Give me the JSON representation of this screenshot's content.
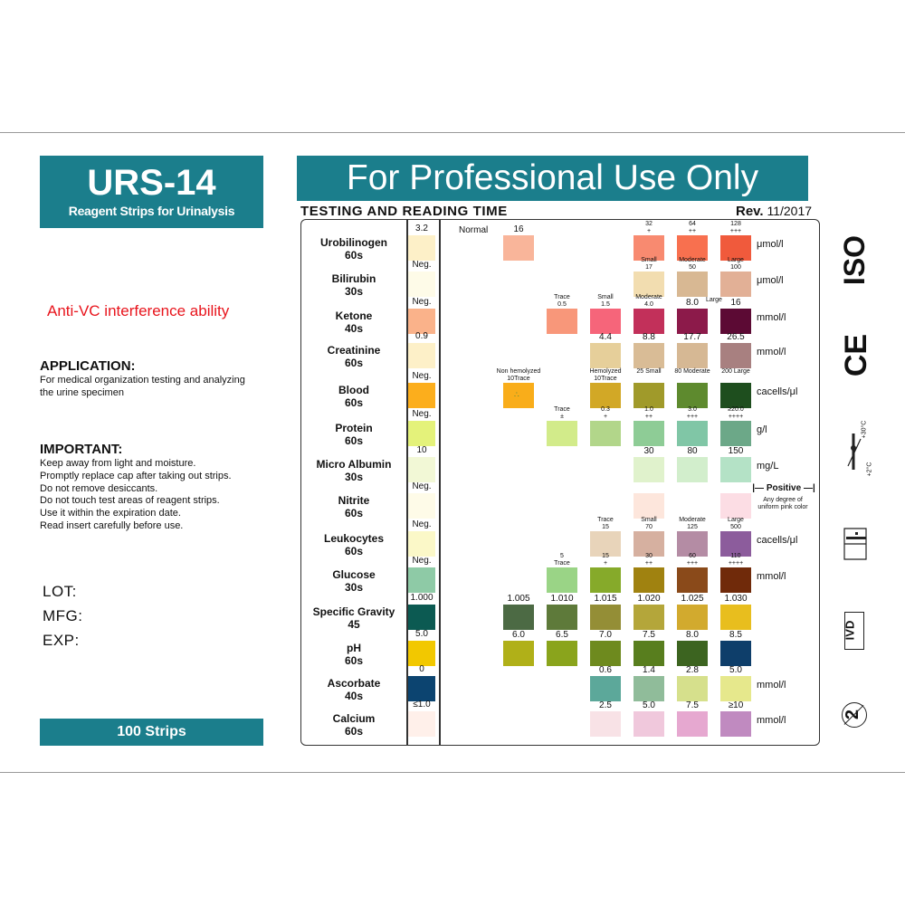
{
  "brand": {
    "title": "URS-14",
    "subtitle": "Reagent Strips for Urinalysis",
    "strips": "100 Strips",
    "color": "#1b7e8c"
  },
  "left": {
    "anti_vc": "Anti-VC interference ability",
    "application_heading": "APPLICATION:",
    "application_text": [
      "For medical organization testing and analyzing",
      "the urine specimen"
    ],
    "important_heading": "IMPORTANT:",
    "important_text": [
      "Keep away from light and moisture.",
      "Promptly replace cap after taking out strips.",
      "Do not remove desiccants.",
      "Do not touch test areas of reagent strips.",
      "Use it within the expiration date.",
      "Read insert carefully before use."
    ],
    "lot": "LOT:",
    "mfg": "MFG:",
    "exp": "EXP:"
  },
  "header": {
    "banner": "For Professional Use Only",
    "subtitle": "TESTING AND READING TIME",
    "rev_label": "Rev.",
    "rev_date": "11/2017"
  },
  "chart": {
    "normal_label": "Normal",
    "positive_label": "Positive",
    "nitrite_note": [
      "Any degree of",
      "uniform pink color"
    ],
    "large_label": "Large",
    "rows": [
      {
        "name": "Urobilinogen",
        "time": "60s",
        "neg": {
          "label": "3.2",
          "color": "#fdf0c8"
        },
        "unit": "μmol/l",
        "cells": [
          {
            "label": [
              "16"
            ],
            "color": "#f9b59a"
          },
          null,
          null,
          {
            "label": [
              "32",
              "+"
            ],
            "color": "#f88a70"
          },
          {
            "label": [
              "64",
              "++"
            ],
            "color": "#f8704f"
          },
          {
            "label": [
              "128",
              "+++"
            ],
            "color": "#f05a3c"
          }
        ]
      },
      {
        "name": "Bilirubin",
        "time": "30s",
        "neg": {
          "label": "Neg.",
          "color": "#fefbe8"
        },
        "unit": "μmol/l",
        "cells": [
          null,
          null,
          null,
          {
            "label": [
              "Small",
              "17"
            ],
            "color": "#f2ddb0"
          },
          {
            "label": [
              "Moderate",
              "50"
            ],
            "color": "#d8b893"
          },
          {
            "label": [
              "Large",
              "100"
            ],
            "color": "#e2b096"
          }
        ]
      },
      {
        "name": "Ketone",
        "time": "40s",
        "neg": {
          "label": "Neg.",
          "color": "#fab28a"
        },
        "unit": "mmol/l",
        "cells": [
          null,
          {
            "label": [
              "Trace",
              "0.5"
            ],
            "color": "#f8977a"
          },
          {
            "label": [
              "Small",
              "1.5"
            ],
            "color": "#f6657a"
          },
          {
            "label": [
              "Moderate",
              "4.0"
            ],
            "color": "#c2305a"
          },
          {
            "label": [
              "8.0"
            ],
            "color": "#8c1a4a"
          },
          {
            "label": [
              "16"
            ],
            "color": "#5c0a34"
          }
        ]
      },
      {
        "name": "Creatinine",
        "time": "60s",
        "neg": {
          "label": "0.9",
          "color": "#fdf0c8"
        },
        "unit": "mmol/l",
        "cells": [
          null,
          null,
          {
            "label": [
              "4.4"
            ],
            "color": "#e6cf9a"
          },
          {
            "label": [
              "8.8"
            ],
            "color": "#d9bc96"
          },
          {
            "label": [
              "17.7"
            ],
            "color": "#d6b894"
          },
          {
            "label": [
              "26.5"
            ],
            "color": "#a88080"
          }
        ]
      },
      {
        "name": "Blood",
        "time": "60s",
        "neg": {
          "label": "Neg.",
          "color": "#fcae1c"
        },
        "unit": "cacells/μl",
        "cells": [
          {
            "label": [
              "Non hemolyzed",
              "10Trace"
            ],
            "color": "#f9ad1a"
          },
          null,
          {
            "label": [
              "Hemolyzed",
              "10Trace"
            ],
            "color": "#d2a826"
          },
          {
            "label": [
              "25 Small"
            ],
            "color": "#a09a2a"
          },
          {
            "label": [
              "80 Moderate"
            ],
            "color": "#5e8a2e"
          },
          {
            "label": [
              "200 Large"
            ],
            "color": "#1e4e1e"
          }
        ]
      },
      {
        "name": "Protein",
        "time": "60s",
        "neg": {
          "label": "Neg.",
          "color": "#e4f27a"
        },
        "unit": "g/l",
        "cells": [
          null,
          {
            "label": [
              "Trace",
              "±"
            ],
            "color": "#d2eb8a"
          },
          {
            "label": [
              "0.3",
              "+"
            ],
            "color": "#b2d68a"
          },
          {
            "label": [
              "1.0",
              "++"
            ],
            "color": "#8ecc96"
          },
          {
            "label": [
              "3.0",
              "+++"
            ],
            "color": "#80c6a6"
          },
          {
            "label": [
              "≥20.0",
              "++++"
            ],
            "color": "#6ca888"
          }
        ]
      },
      {
        "name": "Micro Albumin",
        "time": "30s",
        "neg": {
          "label": "10",
          "color": "#f2f8d6"
        },
        "unit": "mg/L",
        "cells": [
          null,
          null,
          null,
          {
            "label": [
              "30"
            ],
            "color": "#e0f2cc"
          },
          {
            "label": [
              "80"
            ],
            "color": "#d2eecc"
          },
          {
            "label": [
              "150"
            ],
            "color": "#b4e2c6"
          }
        ]
      },
      {
        "name": "Nitrite",
        "time": "60s",
        "neg": {
          "label": "Neg.",
          "color": "#fefbe8"
        },
        "unit": "",
        "cells": [
          null,
          null,
          null,
          {
            "label": [],
            "color": "#fde6dc"
          },
          null,
          {
            "label": [],
            "color": "#fcdde4"
          }
        ]
      },
      {
        "name": "Leukocytes",
        "time": "60s",
        "neg": {
          "label": "Neg.",
          "color": "#fbf8c8"
        },
        "unit": "cacells/μl",
        "cells": [
          null,
          null,
          {
            "label": [
              "Trace",
              "15"
            ],
            "color": "#e8d4ba"
          },
          {
            "label": [
              "Small",
              "70"
            ],
            "color": "#d6b0a0"
          },
          {
            "label": [
              "Moderate",
              "125"
            ],
            "color": "#b48ca4"
          },
          {
            "label": [
              "Large",
              "500"
            ],
            "color": "#8c5c9c"
          }
        ]
      },
      {
        "name": "Glucose",
        "time": "30s",
        "neg": {
          "label": "Neg.",
          "color": "#8ecaa6"
        },
        "unit": "mmol/l",
        "cells": [
          null,
          {
            "label": [
              "5",
              "Trace"
            ],
            "color": "#9ad486"
          },
          {
            "label": [
              "15",
              "+"
            ],
            "color": "#86aa2a"
          },
          {
            "label": [
              "30",
              "++"
            ],
            "color": "#a08210"
          },
          {
            "label": [
              "60",
              "+++"
            ],
            "color": "#8a4a1a"
          },
          {
            "label": [
              "110",
              "++++"
            ],
            "color": "#702a0a"
          }
        ]
      },
      {
        "name": "Specific Gravity",
        "time": "45",
        "neg": {
          "label": "1.000",
          "color": "#0c5a52"
        },
        "unit": "",
        "cells": [
          {
            "label": [
              "1.005"
            ],
            "color": "#4c6a44"
          },
          {
            "label": [
              "1.010"
            ],
            "color": "#5e7a3a"
          },
          {
            "label": [
              "1.015"
            ],
            "color": "#948e36"
          },
          {
            "label": [
              "1.020"
            ],
            "color": "#b4a63a"
          },
          {
            "label": [
              "1.025"
            ],
            "color": "#d2aa2e"
          },
          {
            "label": [
              "1.030"
            ],
            "color": "#e8be1e"
          }
        ]
      },
      {
        "name": "pH",
        "time": "60s",
        "neg": {
          "label": "5.0",
          "color": "#f2c800"
        },
        "unit": "",
        "cells": [
          {
            "label": [
              "6.0"
            ],
            "color": "#b0b018"
          },
          {
            "label": [
              "6.5"
            ],
            "color": "#8aa41c"
          },
          {
            "label": [
              "7.0"
            ],
            "color": "#6e8a1e"
          },
          {
            "label": [
              "7.5"
            ],
            "color": "#587e1e"
          },
          {
            "label": [
              "8.0"
            ],
            "color": "#3c6420"
          },
          {
            "label": [
              "8.5"
            ],
            "color": "#0e3e6a"
          }
        ]
      },
      {
        "name": "Ascorbate",
        "time": "40s",
        "neg": {
          "label": "0",
          "color": "#0c4470"
        },
        "unit": "mmol/l",
        "cells": [
          null,
          null,
          {
            "label": [
              "0.6"
            ],
            "color": "#5ca89a"
          },
          {
            "label": [
              "1.4"
            ],
            "color": "#90bc9a"
          },
          {
            "label": [
              "2.8"
            ],
            "color": "#d6e08c"
          },
          {
            "label": [
              "5.0"
            ],
            "color": "#e6e88c"
          }
        ]
      },
      {
        "name": "Calcium",
        "time": "60s",
        "neg": {
          "label": "≤1.0",
          "color": "#fff0ea"
        },
        "unit": "mmol/l",
        "cells": [
          null,
          null,
          {
            "label": [
              "2.5"
            ],
            "color": "#f8e2e6"
          },
          {
            "label": [
              "5.0"
            ],
            "color": "#f0c8dc"
          },
          {
            "label": [
              "7.5"
            ],
            "color": "#e6a8d0"
          },
          {
            "label": [
              "≥10"
            ],
            "color": "#c08ac0"
          }
        ]
      }
    ]
  },
  "symbols": {
    "iso": "ISO",
    "ce": "CE",
    "temp_high": "+30°C",
    "temp_low": "+2°C",
    "ivd": "IVD",
    "single_use": "2",
    "icons": [
      "iso-mark",
      "ce-mark",
      "temperature-limit-icon",
      "consult-instructions-icon",
      "ivd-icon",
      "do-not-reuse-icon"
    ]
  }
}
